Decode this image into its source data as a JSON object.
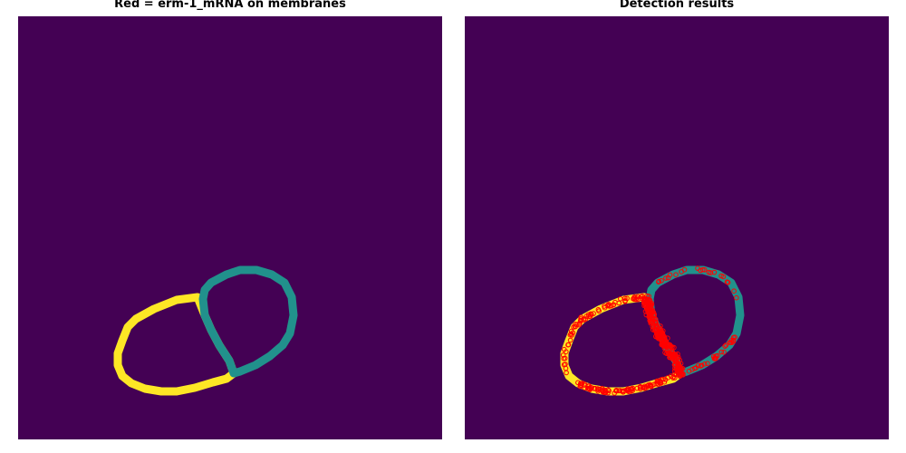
{
  "left_panel": {
    "title": "Red = erm-1_mRNA on membranes"
  },
  "right_panel": {
    "title": "Detection results"
  },
  "colors": {
    "background": "#440154",
    "cell_a": "#fde725",
    "cell_b": "#21918c",
    "detections": "#ff0000"
  }
}
